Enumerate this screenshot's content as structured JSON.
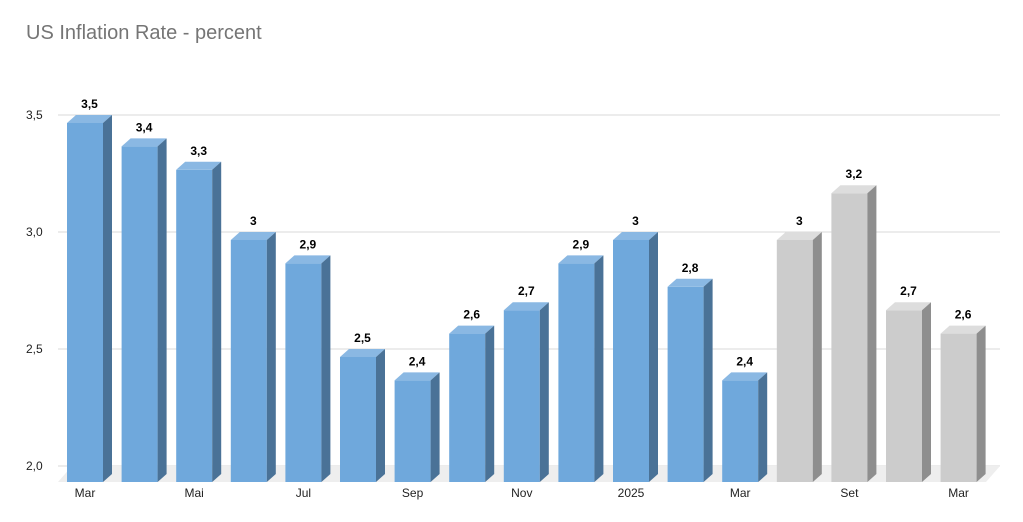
{
  "chart_data": {
    "type": "bar",
    "title": "US Inflation Rate - percent",
    "xlabel": "",
    "ylabel": "",
    "ylim": [
      2.0,
      3.5
    ],
    "yticks": [
      "2,0",
      "2,5",
      "3,0",
      "3,5"
    ],
    "grid": true,
    "legend": "none",
    "categories": [
      "Mar",
      "",
      "Mai",
      "",
      "Jul",
      "",
      "Sep",
      "",
      "Nov",
      "",
      "2025",
      "",
      "Mar",
      "",
      "Set",
      "",
      "Mar"
    ],
    "values": [
      3.5,
      3.4,
      3.3,
      3.0,
      2.9,
      2.5,
      2.4,
      2.6,
      2.7,
      2.9,
      3.0,
      2.8,
      2.4,
      3.0,
      3.2,
      2.7,
      2.6
    ],
    "data_labels": [
      "3,5",
      "3,4",
      "3,3",
      "3",
      "2,9",
      "2,5",
      "2,4",
      "2,6",
      "2,7",
      "2,9",
      "3",
      "2,8",
      "2,4",
      "3",
      "3,2",
      "2,7",
      "2,6"
    ],
    "kind": [
      "actual",
      "actual",
      "actual",
      "actual",
      "actual",
      "actual",
      "actual",
      "actual",
      "actual",
      "actual",
      "actual",
      "actual",
      "actual",
      "forecast",
      "forecast",
      "forecast",
      "forecast"
    ],
    "colors": {
      "actual_front": "#6fa8dc",
      "actual_top": "#8ab8e3",
      "actual_side": "#4a7297",
      "forecast_front": "#cccccc",
      "forecast_top": "#dddddd",
      "forecast_side": "#8e8e8e",
      "grid": "#d9d9d9",
      "floor": "#eeeeee"
    }
  }
}
